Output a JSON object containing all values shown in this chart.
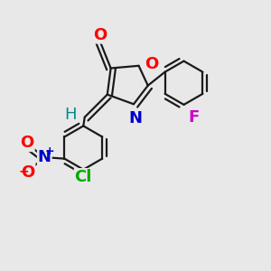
{
  "background_color": "#e8e8e8",
  "bond_color": "#1a1a1a",
  "bond_width": 1.6,
  "fig_size": [
    3.0,
    3.0
  ],
  "dpi": 100,
  "font_size": 13,
  "colors": {
    "O": "#ff0000",
    "N": "#0000cc",
    "F": "#cc00cc",
    "Cl": "#00aa00",
    "H": "#008888",
    "C": "#1a1a1a"
  }
}
